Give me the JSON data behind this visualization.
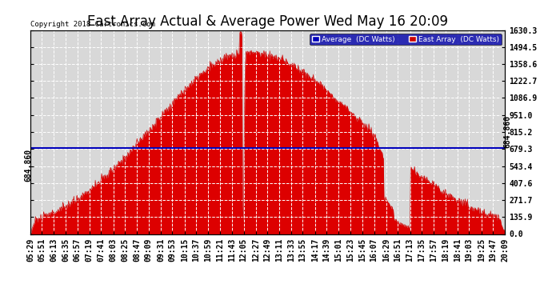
{
  "title": "East Array Actual & Average Power Wed May 16 20:09",
  "copyright": "Copyright 2018 Cartronics.com",
  "legend_labels": [
    "Average  (DC Watts)",
    "East Array  (DC Watts)"
  ],
  "legend_colors": [
    "#0000bb",
    "#cc0000"
  ],
  "avg_line_value": 684.86,
  "avg_line_label": "684.860",
  "yticks": [
    0.0,
    135.9,
    271.7,
    407.6,
    543.4,
    679.3,
    815.2,
    951.0,
    1086.9,
    1222.7,
    1358.6,
    1494.5,
    1630.3
  ],
  "ymax": 1630.3,
  "ymin": 0.0,
  "bg_color": "#ffffff",
  "plot_bg_color": "#d8d8d8",
  "grid_color": "#ffffff",
  "fill_color": "#dd0000",
  "line_color": "#cc0000",
  "avg_color": "#0000bb",
  "title_fontsize": 12,
  "tick_fontsize": 7,
  "time_labels": [
    "05:29",
    "05:51",
    "06:13",
    "06:35",
    "06:57",
    "07:19",
    "07:41",
    "08:03",
    "08:25",
    "08:47",
    "09:09",
    "09:31",
    "09:53",
    "10:15",
    "10:37",
    "10:59",
    "11:21",
    "11:43",
    "12:05",
    "12:27",
    "12:49",
    "13:11",
    "13:33",
    "13:55",
    "14:17",
    "14:39",
    "15:01",
    "15:23",
    "15:45",
    "16:07",
    "16:29",
    "16:51",
    "17:13",
    "17:35",
    "17:57",
    "18:19",
    "18:41",
    "19:03",
    "19:25",
    "19:47",
    "20:09"
  ]
}
